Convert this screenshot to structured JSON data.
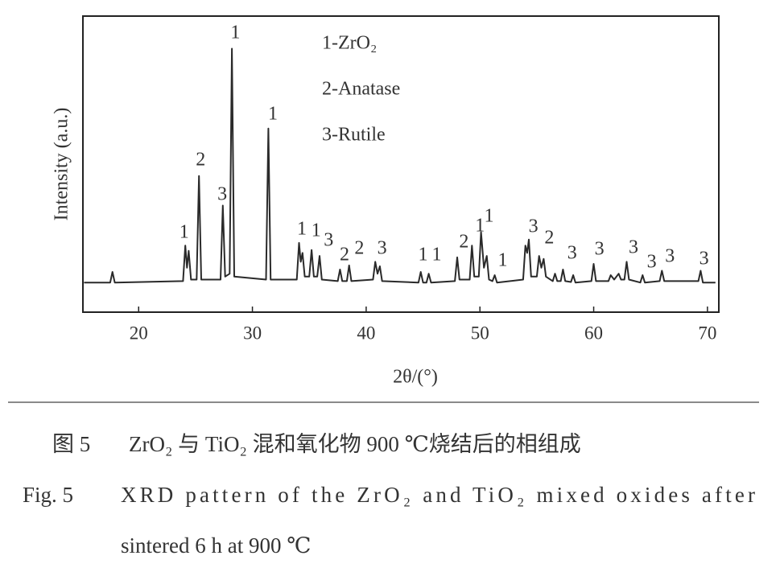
{
  "chart_data": {
    "type": "line",
    "ylabel": "Intensity (a.u.)",
    "xlabel": "2θ/(°)",
    "x": [
      15.2,
      17.5,
      17.7,
      17.9,
      23.9,
      24.1,
      24.25,
      24.4,
      24.6,
      25.1,
      25.3,
      25.5,
      27.2,
      27.4,
      27.6,
      28.0,
      28.2,
      28.4,
      31.2,
      31.4,
      31.6,
      33.9,
      34.1,
      34.25,
      34.4,
      34.6,
      35.0,
      35.2,
      35.4,
      35.7,
      35.9,
      36.1,
      37.5,
      37.7,
      37.9,
      38.3,
      38.5,
      38.7,
      40.6,
      40.8,
      41.0,
      41.2,
      41.4,
      44.6,
      44.8,
      45.0,
      45.3,
      45.5,
      45.7,
      47.8,
      48.0,
      48.2,
      49.1,
      49.3,
      49.5,
      49.9,
      50.1,
      50.35,
      50.6,
      50.8,
      51.1,
      51.3,
      51.5,
      53.8,
      54.0,
      54.15,
      54.3,
      54.5,
      55.0,
      55.2,
      55.4,
      55.6,
      55.8,
      56.4,
      56.6,
      56.8,
      57.1,
      57.3,
      57.5,
      58.0,
      58.2,
      58.4,
      59.8,
      60.0,
      60.2,
      61.3,
      61.5,
      61.8,
      62.2,
      62.4,
      62.7,
      62.9,
      63.1,
      64.1,
      64.3,
      64.5,
      65.8,
      66.0,
      66.2,
      69.2,
      69.4,
      69.6,
      70.7
    ],
    "values": [
      10,
      10,
      13.6,
      10,
      10.5,
      22.5,
      15,
      20.7,
      11,
      11,
      46,
      11,
      11,
      36,
      12,
      13,
      89,
      12,
      11,
      62,
      11,
      11,
      23.4,
      17,
      20,
      12,
      12,
      21,
      12,
      12,
      19,
      11,
      10.5,
      14.4,
      10.5,
      10.5,
      15.8,
      10.5,
      11,
      17,
      13,
      15.5,
      10.5,
      10,
      13.6,
      10,
      10,
      13,
      10,
      10.5,
      18.5,
      11,
      11,
      22.5,
      12,
      12,
      27,
      15,
      19,
      11,
      10.5,
      12.5,
      10,
      11,
      22.5,
      20,
      24.5,
      12,
      12,
      19,
      15,
      18,
      12,
      10.5,
      13,
      10.5,
      10.5,
      14.4,
      10.5,
      10.2,
      12.5,
      10,
      10.5,
      16.3,
      10.5,
      10.5,
      12.5,
      11,
      13,
      11,
      11,
      17,
      11,
      10,
      12.5,
      10,
      10.5,
      14,
      10.5,
      10.5,
      14,
      10,
      10
    ],
    "color": "#2a2a2a",
    "xlim": [
      15.1,
      71
    ],
    "ylim": [
      0,
      100
    ],
    "xticks": [
      20,
      30,
      40,
      50,
      60,
      70
    ],
    "phase_key": [
      "1-ZrO₂",
      "2-Anatase",
      "3-Rutile"
    ],
    "annotations": [
      {
        "text": "1",
        "x": 24.0,
        "y": 26.6
      },
      {
        "text": "2",
        "x": 25.45,
        "y": 51.1
      },
      {
        "text": "3",
        "x": 27.35,
        "y": 39.4
      },
      {
        "text": "1",
        "x": 28.5,
        "y": 94.0
      },
      {
        "text": "1",
        "x": 31.8,
        "y": 66.6
      },
      {
        "text": "1",
        "x": 34.35,
        "y": 27.7
      },
      {
        "text": "1",
        "x": 35.6,
        "y": 27.2
      },
      {
        "text": "3",
        "x": 36.7,
        "y": 23.9
      },
      {
        "text": "2",
        "x": 38.1,
        "y": 19.0
      },
      {
        "text": "2",
        "x": 39.4,
        "y": 21.2
      },
      {
        "text": "3",
        "x": 41.4,
        "y": 21.2
      },
      {
        "text": "1",
        "x": 45.0,
        "y": 19.0
      },
      {
        "text": "1",
        "x": 46.2,
        "y": 19.0
      },
      {
        "text": "2",
        "x": 48.6,
        "y": 23.4
      },
      {
        "text": "1",
        "x": 50.0,
        "y": 28.8
      },
      {
        "text": "1",
        "x": 50.8,
        "y": 32.1
      },
      {
        "text": "1",
        "x": 52.0,
        "y": 17.1
      },
      {
        "text": "3",
        "x": 54.7,
        "y": 28.5
      },
      {
        "text": "2",
        "x": 56.1,
        "y": 24.7
      },
      {
        "text": "3",
        "x": 58.1,
        "y": 19.6
      },
      {
        "text": "3",
        "x": 60.5,
        "y": 20.9
      },
      {
        "text": "3",
        "x": 63.5,
        "y": 21.5
      },
      {
        "text": "3",
        "x": 65.1,
        "y": 16.6
      },
      {
        "text": "3",
        "x": 66.7,
        "y": 18.5
      },
      {
        "text": "3",
        "x": 69.7,
        "y": 17.7
      }
    ]
  },
  "caption": {
    "zh_label": "图 5",
    "zh_text": "ZrO₂ 与 TiO₂ 混和氧化物 900 ℃烧结后的相组成",
    "en_label": "Fig. 5",
    "en_lines": [
      "XRD pattern of the ZrO₂ and TiO₂ mixed oxides after",
      "sintered 6 h at 900 ℃"
    ]
  }
}
